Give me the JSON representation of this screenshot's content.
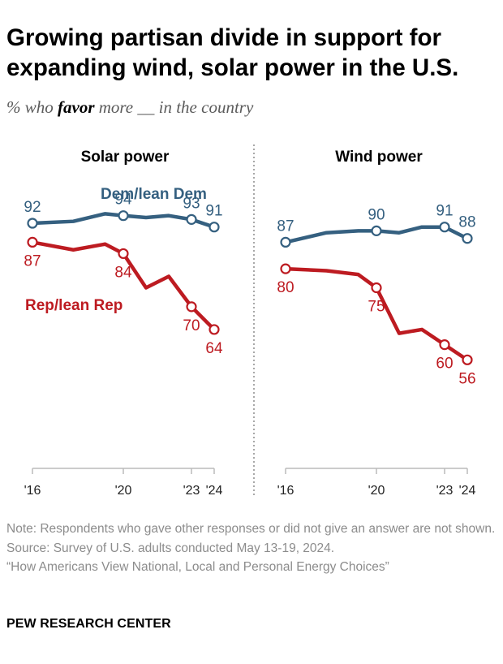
{
  "title": "Growing partisan divide in support for expanding wind, solar power in the U.S.",
  "subtitle": {
    "prefix": "% who ",
    "emphasis": "favor",
    "suffix": " more __ in the country"
  },
  "colors": {
    "dem": "#356080",
    "rep": "#bd1b21",
    "axis": "#bbbbbb",
    "divider": "#6e6e6e"
  },
  "chart_data": [
    {
      "type": "line",
      "title": "Solar power",
      "x_ticks": [
        2016,
        2020,
        2023,
        2024
      ],
      "x_tick_labels": [
        "'16",
        "'20",
        "'23",
        "'24"
      ],
      "xlim": [
        2016,
        2024
      ],
      "ylim": [
        50,
        100
      ],
      "series": [
        {
          "name": "Dem/lean Dem",
          "color": "#356080",
          "points": [
            {
              "x": 2016.0,
              "y": 92,
              "label": "92",
              "open": true
            },
            {
              "x": 2017.8,
              "y": 92.5
            },
            {
              "x": 2019.2,
              "y": 94.5
            },
            {
              "x": 2020.0,
              "y": 94,
              "label": "94",
              "open": true
            },
            {
              "x": 2021.0,
              "y": 93.5
            },
            {
              "x": 2022.0,
              "y": 94
            },
            {
              "x": 2023.0,
              "y": 93,
              "label": "93",
              "open": true
            },
            {
              "x": 2024.0,
              "y": 91,
              "label": "91",
              "open": true
            }
          ]
        },
        {
          "name": "Rep/lean Rep",
          "color": "#bd1b21",
          "points": [
            {
              "x": 2016.0,
              "y": 87,
              "label": "87",
              "open": true
            },
            {
              "x": 2017.8,
              "y": 85
            },
            {
              "x": 2019.2,
              "y": 86.5
            },
            {
              "x": 2020.0,
              "y": 84,
              "label": "84",
              "open": true
            },
            {
              "x": 2021.0,
              "y": 75
            },
            {
              "x": 2022.0,
              "y": 78
            },
            {
              "x": 2023.0,
              "y": 70,
              "label": "70",
              "open": true
            },
            {
              "x": 2024.0,
              "y": 64,
              "label": "64",
              "open": true
            }
          ]
        }
      ]
    },
    {
      "type": "line",
      "title": "Wind power",
      "x_ticks": [
        2016,
        2020,
        2023,
        2024
      ],
      "x_tick_labels": [
        "'16",
        "'20",
        "'23",
        "'24"
      ],
      "xlim": [
        2016,
        2024
      ],
      "ylim": [
        50,
        100
      ],
      "series": [
        {
          "name": "Dem/lean Dem",
          "color": "#356080",
          "points": [
            {
              "x": 2016.0,
              "y": 87,
              "label": "87",
              "open": true
            },
            {
              "x": 2017.8,
              "y": 89.5
            },
            {
              "x": 2019.2,
              "y": 90
            },
            {
              "x": 2020.0,
              "y": 90,
              "label": "90",
              "open": true
            },
            {
              "x": 2021.0,
              "y": 89.5
            },
            {
              "x": 2022.0,
              "y": 91
            },
            {
              "x": 2023.0,
              "y": 91,
              "label": "91",
              "open": true
            },
            {
              "x": 2024.0,
              "y": 88,
              "label": "88",
              "open": true
            }
          ]
        },
        {
          "name": "Rep/lean Rep",
          "color": "#bd1b21",
          "points": [
            {
              "x": 2016.0,
              "y": 80,
              "label": "80",
              "open": true
            },
            {
              "x": 2017.8,
              "y": 79.5
            },
            {
              "x": 2019.2,
              "y": 78.5
            },
            {
              "x": 2020.0,
              "y": 75,
              "label": "75",
              "open": true
            },
            {
              "x": 2021.0,
              "y": 63
            },
            {
              "x": 2022.0,
              "y": 64
            },
            {
              "x": 2023.0,
              "y": 60,
              "label": "60",
              "open": true
            },
            {
              "x": 2024.0,
              "y": 56,
              "label": "56",
              "open": true
            }
          ]
        }
      ]
    }
  ],
  "legend": {
    "dem": "Dem/lean Dem",
    "rep": "Rep/lean Rep"
  },
  "notes": {
    "note": "Note: Respondents who gave other responses or did not give an answer are not shown.",
    "source": "Source: Survey of U.S. adults conducted May 13-19, 2024.",
    "report": "“How Americans View National, Local and Personal Energy Choices”"
  },
  "brand": "PEW RESEARCH CENTER"
}
